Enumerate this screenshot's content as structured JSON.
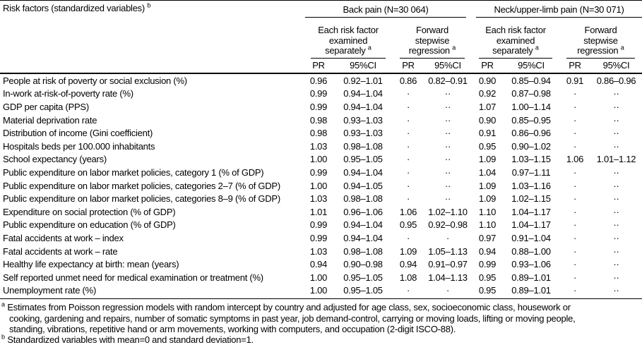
{
  "header": {
    "row_header": "Risk factors (standardized variables)",
    "row_header_marker": "b",
    "groups": [
      {
        "label": "Back pain (N=30 064)"
      },
      {
        "label": "Neck/upper-limb pain (N=30 071)"
      }
    ],
    "subheader_separate": "Each risk factor examined separately",
    "subheader_forward": "Forward stepwise regression",
    "subheader_marker": "a",
    "pr_label": "PR",
    "ci_label": "95%CI"
  },
  "rows": [
    {
      "label": "People at risk of poverty or social exclusion (%)",
      "values": [
        "0.96",
        "0.92–1.01",
        "0.86",
        "0.82–0.91",
        "0.90",
        "0.85–0.94",
        "0.91",
        "0.86–0.96"
      ]
    },
    {
      "label": "In-work at-risk-of-poverty rate (%)",
      "values": [
        "0.99",
        "0.94–1.04",
        "·",
        "··",
        "0.92",
        "0.87–0.98",
        "·",
        "··"
      ]
    },
    {
      "label": "GDP per capita (PPS)",
      "values": [
        "0.99",
        "0.94–1.04",
        "·",
        "··",
        "1.07",
        "1.00–1.14",
        "·",
        "··"
      ]
    },
    {
      "label": "Material deprivation rate",
      "values": [
        "0.98",
        "0.93–1.03",
        "·",
        "··",
        "0.90",
        "0.85–0.95",
        "·",
        "··"
      ]
    },
    {
      "label": "Distribution of income (Gini coefficient)",
      "values": [
        "0.98",
        "0.93–1.03",
        "·",
        "··",
        "0.91",
        "0.86–0.96",
        "·",
        "··"
      ]
    },
    {
      "label": "Hospitals beds per 100.000 inhabitants",
      "values": [
        "1.03",
        "0.98–1.08",
        "·",
        "··",
        "0.95",
        "0.90–1.02",
        "·",
        "··"
      ]
    },
    {
      "label": "School expectancy (years)",
      "values": [
        "1.00",
        "0.95–1.05",
        "·",
        "··",
        "1.09",
        "1.03–1.15",
        "1.06",
        "1.01–1.12"
      ]
    },
    {
      "label": "Public expenditure on labor market policies, category 1 (% of GDP)",
      "values": [
        "0.99",
        "0.94–1.04",
        "·",
        "··",
        "1.04",
        "0.97–1.11",
        "·",
        "··"
      ]
    },
    {
      "label": "Public expenditure on labor market policies, categories 2–7 (% of GDP)",
      "values": [
        "1.00",
        "0.94–1.05",
        "·",
        "··",
        "1.09",
        "1.03–1.16",
        "·",
        "··"
      ]
    },
    {
      "label": "Public expenditure on labor market policies, categories 8–9 (% of GDP)",
      "values": [
        "1.03",
        "0.98–1.08",
        "·",
        "··",
        "1.09",
        "1.02–1.15",
        "·",
        "··"
      ]
    },
    {
      "label": "Expenditure on social protection (% of GDP)",
      "values": [
        "1.01",
        "0.96–1.06",
        "1.06",
        "1.02–1.10",
        "1.10",
        "1.04–1.17",
        "·",
        "··"
      ]
    },
    {
      "label": "Public expenditure on education (% of GDP)",
      "values": [
        "0.99",
        "0.94–1.04",
        "0.95",
        "0.92–0.98",
        "1.10",
        "1.04–1.17",
        "·",
        "··"
      ]
    },
    {
      "label": "Fatal accidents at work – index",
      "values": [
        "0.99",
        "0.94–1.04",
        "·",
        "·",
        "0.97",
        "0.91–1.04",
        "·",
        "··"
      ]
    },
    {
      "label": "Fatal accidents at work – rate",
      "values": [
        "1.03",
        "0.98–1.08",
        "1.09",
        "1.05–1.13",
        "0.94",
        "0.88–1.00",
        "·",
        "··"
      ]
    },
    {
      "label": "Healthy life expectancy at birth: mean (years)",
      "values": [
        "0.94",
        "0.90–0.98",
        "0.94",
        "0.91–0.97",
        "0.99",
        "0.93–1.06",
        "·",
        "··"
      ]
    },
    {
      "label": "Self reported unmet need for medical examination or treatment (%)",
      "values": [
        "1.00",
        "0.95–1.05",
        "1.08",
        "1.04–1.13",
        "0.95",
        "0.89–1.01",
        "·",
        "··"
      ]
    },
    {
      "label": "Unemployment rate (%)",
      "values": [
        "1.00",
        "0.95–1.05",
        "·",
        "·",
        "0.95",
        "0.89–1.01",
        "·",
        "··"
      ]
    }
  ],
  "footnotes": {
    "a_marker": "a",
    "a_lines": [
      "Estimates from Poisson regression models with random intercept by country and adjusted for age class, sex, socioeconomic class, housework or",
      "cooking, gardening and repairs, number of somatic symptoms in past year, job demand-control, carrying or moving loads, lifting or moving people,",
      "standing, vibrations, repetitive hand or arm movements, working with computers, and occupation (2-digit ISCO-88)."
    ],
    "b_marker": "b",
    "b_text": "Standardized variables with mean=0 and standard deviation=1."
  }
}
